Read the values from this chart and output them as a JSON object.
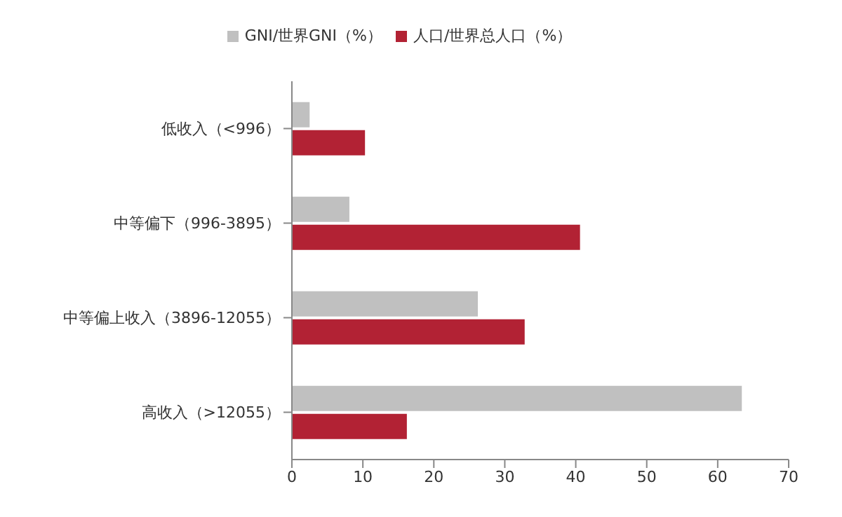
{
  "chart_data": {
    "type": "bar",
    "orientation": "horizontal",
    "categories": [
      "低收入（<996）",
      "中等偏下（996-3895）",
      "中等偏上收入（3896-12055）",
      "高收入（>12055）"
    ],
    "series": [
      {
        "name": "GNI/世界GNI（%）",
        "color": "#c0c0c0",
        "values": [
          2.5,
          8.1,
          26.2,
          63.4
        ]
      },
      {
        "name": "人口/世界总人口（%）",
        "color": "#b22234",
        "values": [
          10.3,
          40.6,
          32.8,
          16.2
        ]
      }
    ],
    "xlim": [
      0,
      70
    ],
    "xticks": [
      0,
      10,
      20,
      30,
      40,
      50,
      60,
      70
    ],
    "grid": false,
    "legend": "top"
  }
}
